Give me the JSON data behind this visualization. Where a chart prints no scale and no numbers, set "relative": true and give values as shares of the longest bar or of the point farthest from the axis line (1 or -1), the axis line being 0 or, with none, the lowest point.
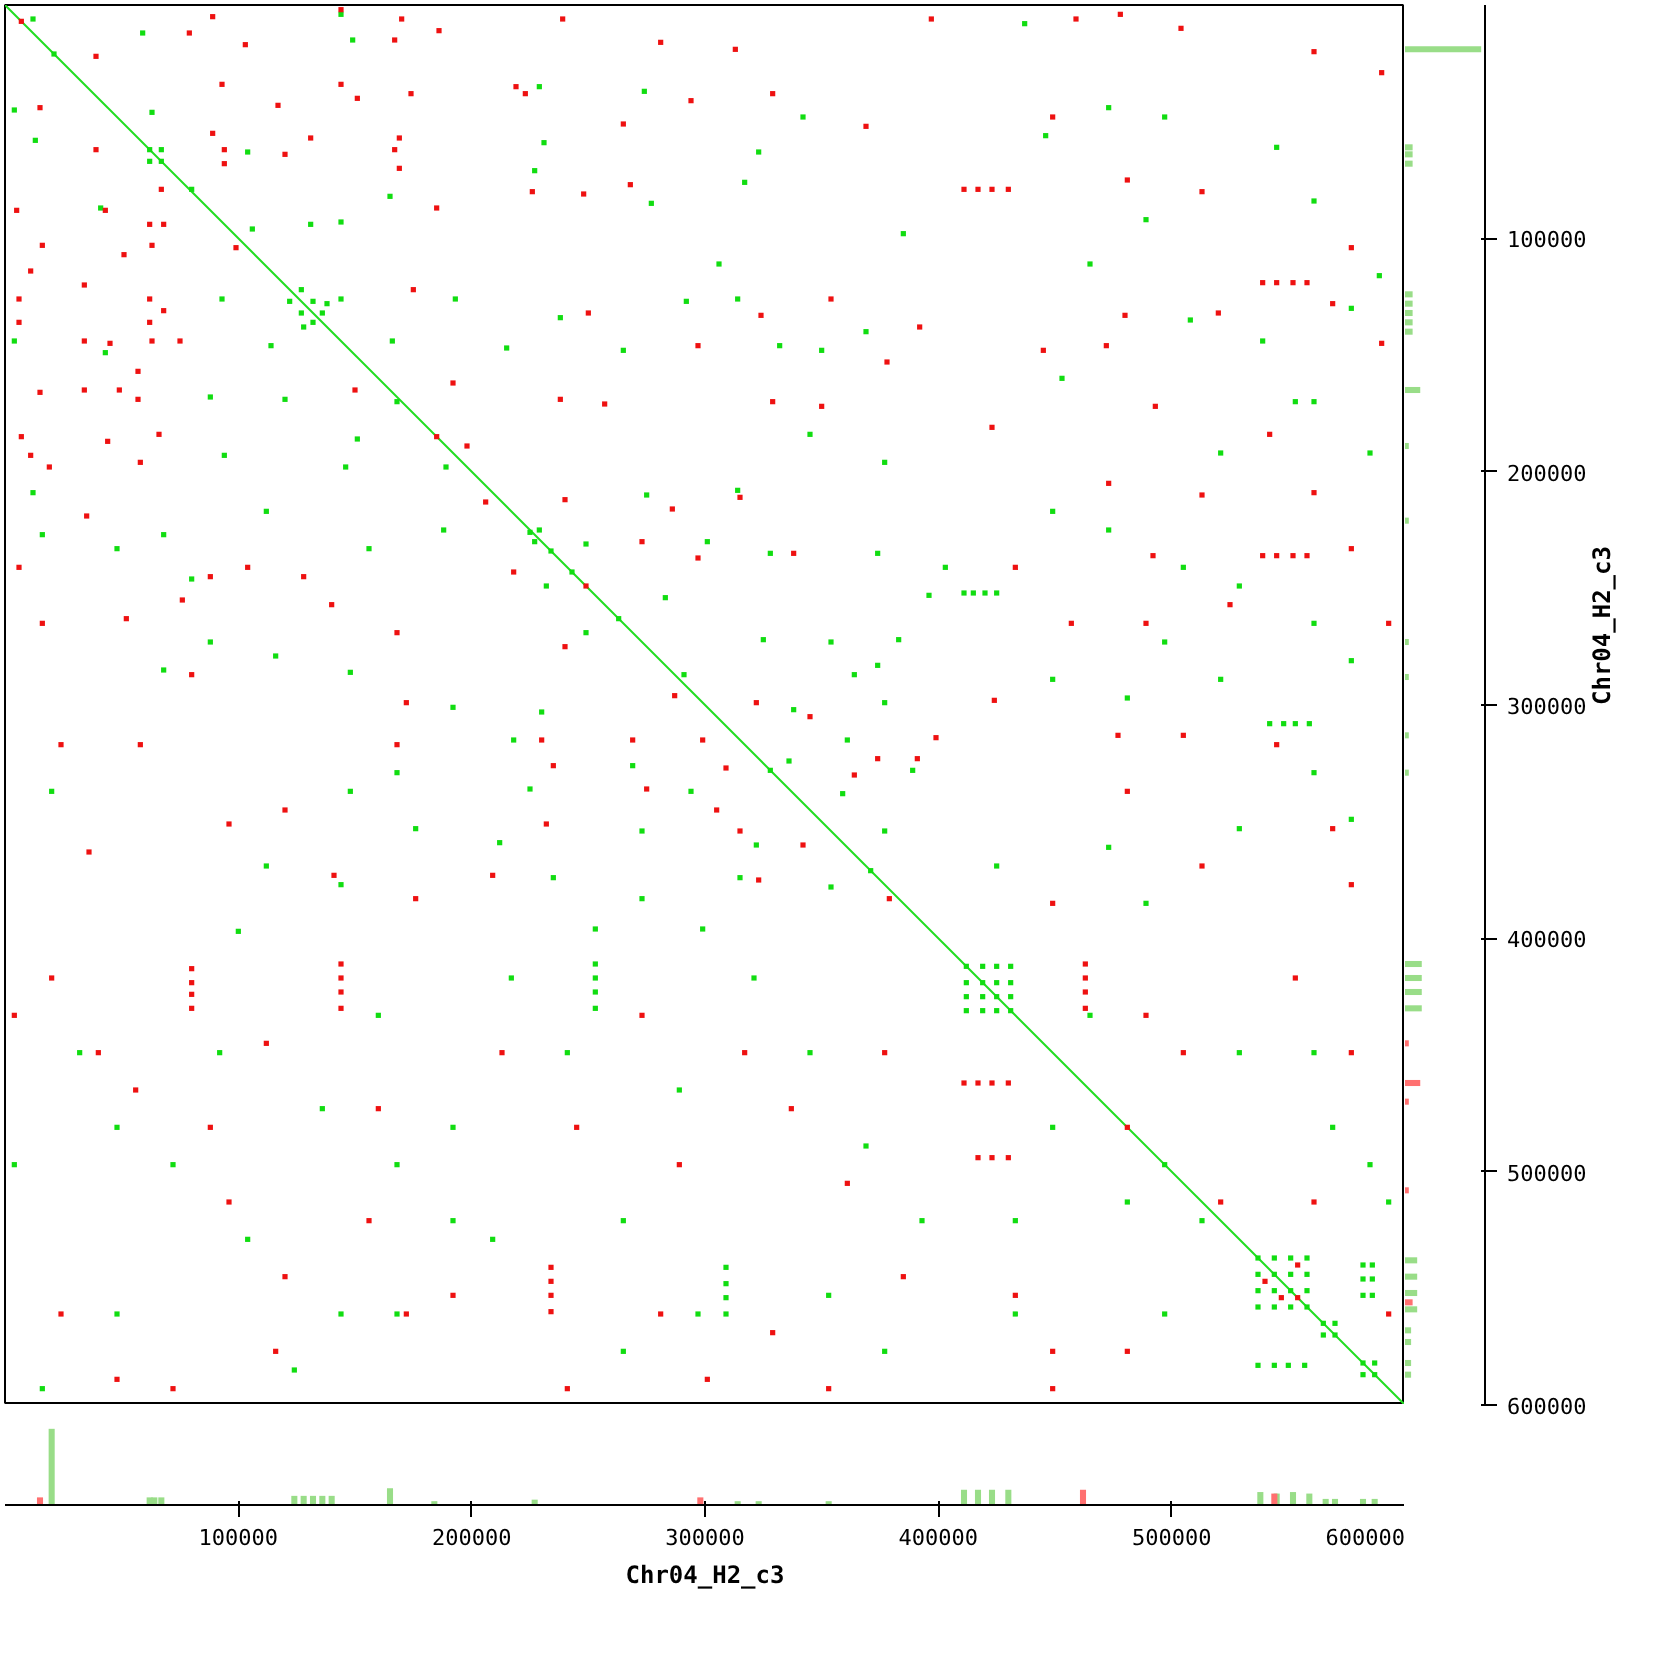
{
  "chart_data": [
    {
      "type": "scatter",
      "xlabel": "Chr04_H2_c3",
      "ylabel": "Chr04_H2_c3",
      "xlim": [
        0,
        600000
      ],
      "ylim": [
        600000,
        0
      ],
      "xticks": [
        100000,
        200000,
        300000,
        400000,
        500000,
        600000
      ],
      "yticks": [
        100000,
        200000,
        300000,
        400000,
        500000,
        600000
      ],
      "marker": "square",
      "series": [
        {
          "type": "line",
          "marker": "none",
          "color": "#22dd22",
          "x": [
            0,
            600000
          ],
          "values": [
            0,
            600000
          ]
        },
        {
          "color": "#11dd11",
          "x": [
            12000,
            59000,
            144000,
            149000,
            4000,
            13000,
            63000,
            104000,
            80000,
            41000,
            106000,
            131000,
            144000,
            165000,
            93000,
            144000,
            193000,
            166000,
            4000,
            43000,
            114000,
            88000,
            120000,
            168000,
            151000,
            94000,
            146000,
            189000,
            21000,
            62000,
            67000,
            62000,
            67000,
            127000,
            132000,
            136000,
            122000,
            127000,
            132000,
            138000,
            128000,
            227000,
            231000,
            323000,
            317000,
            342000,
            274000,
            306000,
            292000,
            314000,
            332000,
            350000,
            377000,
            345000,
            238000,
            215000,
            265000,
            277000,
            385000,
            369000,
            229000,
            561000,
            473000,
            437000,
            446000,
            489000,
            508000,
            539000,
            553000,
            561000,
            577000,
            585000,
            521000,
            465000,
            497000,
            453000,
            545000,
            589000,
            12000,
            16000,
            48000,
            80000,
            68000,
            112000,
            116000,
            148000,
            156000,
            192000,
            148000,
            168000,
            112000,
            100000,
            176000,
            144000,
            188000,
            68000,
            88000,
            20000,
            275000,
            249000,
            314000,
            301000,
            328000,
            374000,
            232000,
            283000,
            396000,
            249000,
            325000,
            354000,
            383000,
            374000,
            291000,
            364000,
            230000,
            338000,
            377000,
            361000,
            218000,
            269000,
            336000,
            389000,
            225000,
            294000,
            359000,
            273000,
            377000,
            212000,
            322000,
            235000,
            315000,
            273000,
            354000,
            253000,
            299000,
            225000,
            229000,
            227000,
            234000,
            243000,
            263000,
            328000,
            371000,
            403000,
            411000,
            415000,
            420000,
            425000,
            542000,
            548000,
            553000,
            559000,
            449000,
            473000,
            505000,
            529000,
            561000,
            577000,
            497000,
            449000,
            481000,
            521000,
            561000,
            529000,
            473000,
            489000,
            425000,
            577000,
            32000,
            48000,
            72000,
            92000,
            160000,
            136000,
            168000,
            104000,
            144000,
            192000,
            16000,
            48000,
            124000,
            168000,
            192000,
            4000,
            253000,
            253000,
            253000,
            253000,
            309000,
            309000,
            309000,
            309000,
            217000,
            241000,
            265000,
            289000,
            321000,
            345000,
            369000,
            393000,
            353000,
            297000,
            265000,
            377000,
            209000,
            412000,
            419000,
            425000,
            431000,
            412000,
            419000,
            425000,
            431000,
            412000,
            419000,
            425000,
            431000,
            412000,
            419000,
            425000,
            431000,
            537000,
            544000,
            551000,
            558000,
            537000,
            544000,
            551000,
            558000,
            537000,
            544000,
            551000,
            558000,
            537000,
            544000,
            551000,
            558000,
            565000,
            570000,
            565000,
            570000,
            582000,
            587000,
            582000,
            587000,
            582000,
            582000,
            582000,
            586000,
            586000,
            586000,
            537000,
            544000,
            550000,
            557000,
            497000,
            513000,
            481000,
            449000,
            433000,
            561000,
            569000,
            585000,
            433000,
            497000,
            465000,
            529000,
            593000
          ],
          "values": [
            6000,
            12000,
            4000,
            15000,
            45000,
            58000,
            46000,
            63000,
            79000,
            87000,
            96000,
            94000,
            93000,
            82000,
            126000,
            126000,
            126000,
            144000,
            144000,
            149000,
            146000,
            168000,
            169000,
            170000,
            186000,
            193000,
            198000,
            198000,
            21000,
            62000,
            67000,
            67000,
            62000,
            122000,
            127000,
            132000,
            127000,
            132000,
            136000,
            128000,
            138000,
            71000,
            59000,
            63000,
            76000,
            48000,
            37000,
            111000,
            127000,
            126000,
            146000,
            148000,
            196000,
            184000,
            134000,
            147000,
            148000,
            85000,
            98000,
            140000,
            35000,
            84000,
            44000,
            8000,
            56000,
            92000,
            135000,
            144000,
            170000,
            170000,
            130000,
            192000,
            192000,
            111000,
            48000,
            160000,
            61000,
            116000,
            209000,
            227000,
            233000,
            246000,
            227000,
            217000,
            279000,
            286000,
            233000,
            301000,
            337000,
            329000,
            369000,
            397000,
            353000,
            377000,
            225000,
            285000,
            273000,
            337000,
            210000,
            231000,
            208000,
            230000,
            235000,
            235000,
            249000,
            254000,
            253000,
            269000,
            272000,
            273000,
            272000,
            283000,
            287000,
            287000,
            303000,
            302000,
            299000,
            315000,
            315000,
            326000,
            324000,
            328000,
            336000,
            337000,
            338000,
            354000,
            354000,
            359000,
            360000,
            374000,
            374000,
            383000,
            378000,
            396000,
            396000,
            226000,
            225000,
            230000,
            234000,
            243000,
            263000,
            328000,
            371000,
            241000,
            252000,
            252000,
            252000,
            252000,
            308000,
            308000,
            308000,
            308000,
            217000,
            225000,
            241000,
            249000,
            265000,
            281000,
            273000,
            289000,
            297000,
            289000,
            329000,
            353000,
            361000,
            385000,
            369000,
            349000,
            449000,
            481000,
            497000,
            449000,
            433000,
            473000,
            497000,
            529000,
            561000,
            521000,
            593000,
            561000,
            585000,
            561000,
            481000,
            497000,
            411000,
            417000,
            423000,
            430000,
            541000,
            548000,
            554000,
            561000,
            417000,
            449000,
            521000,
            465000,
            417000,
            449000,
            489000,
            521000,
            553000,
            561000,
            577000,
            577000,
            529000,
            412000,
            412000,
            412000,
            412000,
            419000,
            419000,
            419000,
            419000,
            425000,
            425000,
            425000,
            425000,
            431000,
            431000,
            431000,
            431000,
            537000,
            537000,
            537000,
            537000,
            544000,
            544000,
            544000,
            544000,
            551000,
            551000,
            551000,
            551000,
            558000,
            558000,
            558000,
            558000,
            565000,
            565000,
            570000,
            570000,
            582000,
            582000,
            587000,
            587000,
            540000,
            546000,
            553000,
            540000,
            546000,
            553000,
            583000,
            583000,
            583000,
            583000,
            497000,
            521000,
            513000,
            481000,
            521000,
            449000,
            481000,
            497000,
            561000,
            561000,
            433000,
            449000,
            513000
          ]
        },
        {
          "color": "#ee1111",
          "x": [
            7000,
            89000,
            79000,
            103000,
            39000,
            144000,
            170000,
            167000,
            186000,
            93000,
            144000,
            151000,
            174000,
            117000,
            15000,
            89000,
            131000,
            169000,
            94000,
            94000,
            120000,
            167000,
            169000,
            39000,
            67000,
            5000,
            43000,
            62000,
            68000,
            63000,
            16000,
            51000,
            99000,
            185000,
            175000,
            11000,
            34000,
            6000,
            6000,
            62000,
            62000,
            68000,
            34000,
            45000,
            63000,
            75000,
            57000,
            15000,
            34000,
            49000,
            57000,
            150000,
            192000,
            7000,
            44000,
            66000,
            11000,
            19000,
            58000,
            185000,
            198000,
            219000,
            223000,
            239000,
            226000,
            248000,
            268000,
            265000,
            294000,
            329000,
            281000,
            369000,
            324000,
            329000,
            350000,
            378000,
            392000,
            238000,
            257000,
            250000,
            297000,
            354000,
            397000,
            313000,
            411000,
            417000,
            423000,
            430000,
            539000,
            545000,
            552000,
            558000,
            459000,
            478000,
            504000,
            513000,
            481000,
            445000,
            480000,
            520000,
            569000,
            590000,
            472000,
            542000,
            577000,
            449000,
            561000,
            590000,
            423000,
            493000,
            35000,
            6000,
            16000,
            52000,
            76000,
            88000,
            80000,
            104000,
            128000,
            140000,
            168000,
            168000,
            58000,
            120000,
            96000,
            141000,
            176000,
            172000,
            24000,
            36000,
            206000,
            240000,
            286000,
            315000,
            297000,
            273000,
            338000,
            218000,
            249000,
            240000,
            287000,
            322000,
            345000,
            230000,
            269000,
            299000,
            309000,
            235000,
            364000,
            374000,
            391000,
            275000,
            305000,
            232000,
            315000,
            323000,
            342000,
            209000,
            379000,
            399000,
            539000,
            545000,
            552000,
            558000,
            492000,
            473000,
            513000,
            561000,
            577000,
            457000,
            489000,
            525000,
            593000,
            477000,
            505000,
            545000,
            481000,
            513000,
            569000,
            449000,
            577000,
            424000,
            433000,
            80000,
            80000,
            80000,
            80000,
            144000,
            144000,
            144000,
            144000,
            4000,
            20000,
            40000,
            56000,
            88000,
            96000,
            120000,
            116000,
            160000,
            156000,
            172000,
            24000,
            48000,
            72000,
            112000,
            192000,
            234000,
            234000,
            234000,
            234000,
            213000,
            245000,
            273000,
            289000,
            317000,
            337000,
            361000,
            385000,
            329000,
            281000,
            241000,
            301000,
            353000,
            377000,
            411000,
            417000,
            423000,
            430000,
            463000,
            463000,
            463000,
            463000,
            417000,
            423000,
            430000,
            540000,
            547000,
            554000,
            554000,
            433000,
            449000,
            489000,
            505000,
            481000,
            521000,
            561000,
            577000,
            553000,
            593000,
            449000,
            481000
          ],
          "values": [
            7000,
            5000,
            12000,
            17000,
            22000,
            2000,
            6000,
            15000,
            11000,
            34000,
            34000,
            40000,
            38000,
            43000,
            44000,
            55000,
            57000,
            57000,
            62000,
            68000,
            64000,
            62000,
            70000,
            62000,
            79000,
            88000,
            88000,
            94000,
            94000,
            103000,
            103000,
            107000,
            104000,
            87000,
            122000,
            114000,
            120000,
            126000,
            136000,
            126000,
            136000,
            131000,
            144000,
            145000,
            144000,
            144000,
            157000,
            166000,
            165000,
            165000,
            169000,
            165000,
            162000,
            185000,
            187000,
            184000,
            193000,
            198000,
            196000,
            185000,
            189000,
            35000,
            38000,
            6000,
            80000,
            81000,
            77000,
            51000,
            41000,
            38000,
            16000,
            52000,
            133000,
            170000,
            172000,
            153000,
            138000,
            169000,
            171000,
            132000,
            146000,
            126000,
            6000,
            19000,
            79000,
            79000,
            79000,
            79000,
            119000,
            119000,
            119000,
            119000,
            6000,
            4000,
            10000,
            80000,
            75000,
            148000,
            133000,
            132000,
            128000,
            145000,
            146000,
            184000,
            104000,
            48000,
            20000,
            29000,
            181000,
            172000,
            219000,
            241000,
            265000,
            263000,
            255000,
            245000,
            287000,
            241000,
            245000,
            257000,
            269000,
            317000,
            317000,
            345000,
            351000,
            373000,
            383000,
            299000,
            317000,
            363000,
            213000,
            212000,
            216000,
            211000,
            237000,
            230000,
            235000,
            243000,
            249000,
            275000,
            296000,
            299000,
            305000,
            315000,
            315000,
            315000,
            327000,
            326000,
            330000,
            323000,
            323000,
            336000,
            345000,
            351000,
            354000,
            375000,
            360000,
            373000,
            383000,
            314000,
            236000,
            236000,
            236000,
            236000,
            236000,
            205000,
            210000,
            209000,
            233000,
            265000,
            265000,
            257000,
            265000,
            313000,
            313000,
            317000,
            337000,
            369000,
            353000,
            385000,
            377000,
            298000,
            241000,
            413000,
            419000,
            424000,
            430000,
            411000,
            417000,
            423000,
            430000,
            433000,
            417000,
            449000,
            465000,
            481000,
            513000,
            545000,
            577000,
            473000,
            521000,
            561000,
            561000,
            589000,
            593000,
            445000,
            553000,
            541000,
            547000,
            553000,
            560000,
            449000,
            481000,
            433000,
            497000,
            449000,
            473000,
            505000,
            545000,
            569000,
            561000,
            593000,
            589000,
            593000,
            449000,
            462000,
            462000,
            462000,
            462000,
            411000,
            417000,
            423000,
            430000,
            494000,
            494000,
            494000,
            547000,
            554000,
            540000,
            554000,
            553000,
            577000,
            433000,
            449000,
            481000,
            513000,
            513000,
            449000,
            417000,
            561000,
            593000,
            577000
          ]
        }
      ]
    },
    {
      "type": "bar",
      "relative": true,
      "xlim": [
        0,
        600000
      ],
      "series": [
        {
          "color": "#99dd88",
          "x": [
            20000,
            62000,
            64000,
            67000,
            124000,
            128000,
            132000,
            136000,
            140000,
            165000,
            184000,
            227000,
            314000,
            323000,
            353000,
            411000,
            417000,
            423000,
            430000,
            538000,
            545000,
            552000,
            559000,
            566000,
            570000,
            582000,
            587000
          ],
          "values": [
            1,
            0.1,
            0.1,
            0.1,
            0.12,
            0.12,
            0.12,
            0.12,
            0.12,
            0.22,
            0.05,
            0.07,
            0.05,
            0.05,
            0.05,
            0.2,
            0.2,
            0.2,
            0.2,
            0.17,
            0.15,
            0.17,
            0.15,
            0.08,
            0.08,
            0.08,
            0.08
          ]
        },
        {
          "color": "#ff7070",
          "x": [
            15000,
            298000,
            462000,
            544000
          ],
          "values": [
            0.1,
            0.1,
            0.2,
            0.15
          ]
        }
      ]
    },
    {
      "type": "bar",
      "relative": true,
      "orientation": "horizontal",
      "ylim": [
        600000,
        0
      ],
      "series": [
        {
          "color": "#99dd88",
          "x": [
            19000,
            61000,
            64000,
            68000,
            124000,
            128000,
            132000,
            136000,
            140000,
            165000,
            189000,
            221000,
            273000,
            288000,
            313000,
            329000,
            411000,
            417000,
            423000,
            430000,
            538000,
            545000,
            552000,
            559000,
            568000,
            573000,
            582000,
            587000
          ],
          "values": [
            1,
            0.1,
            0.1,
            0.1,
            0.1,
            0.1,
            0.1,
            0.1,
            0.1,
            0.2,
            0.05,
            0.05,
            0.05,
            0.05,
            0.05,
            0.05,
            0.22,
            0.22,
            0.22,
            0.22,
            0.16,
            0.16,
            0.16,
            0.16,
            0.08,
            0.08,
            0.08,
            0.08
          ]
        },
        {
          "color": "#ff7070",
          "x": [
            445000,
            462000,
            470000,
            508000,
            556000
          ],
          "values": [
            0.05,
            0.2,
            0.05,
            0.05,
            0.1
          ]
        }
      ]
    }
  ]
}
